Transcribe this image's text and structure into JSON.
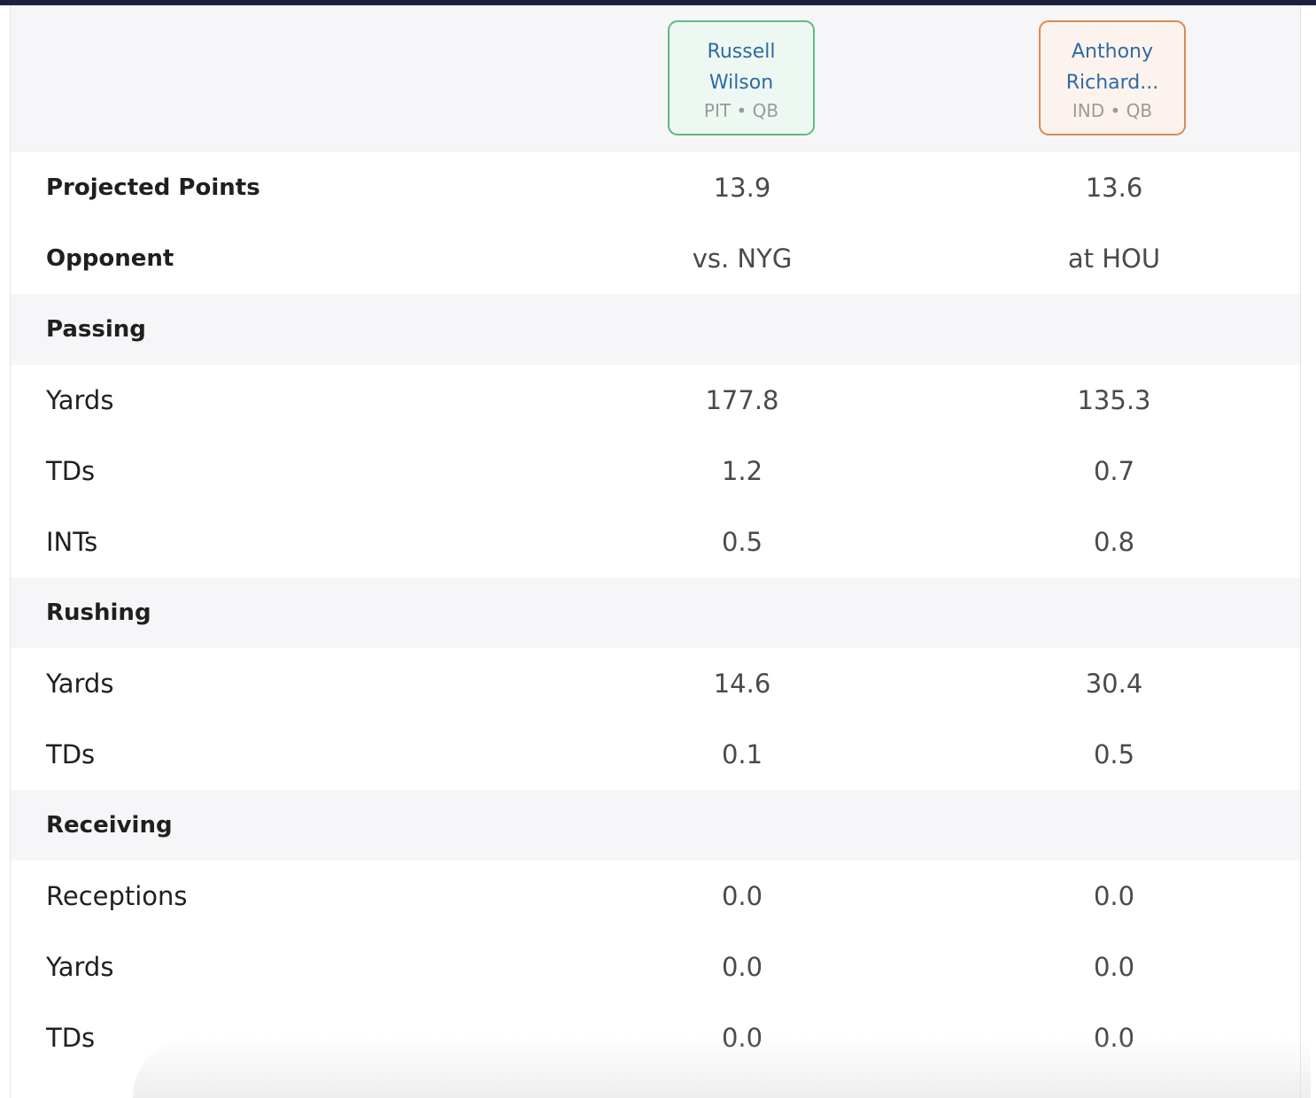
{
  "players": [
    {
      "name": "Russell\nWilson",
      "line1": "Russell",
      "line2": "Wilson",
      "meta": "PIT • QB",
      "accent": "#5cbc7e"
    },
    {
      "name": "Anthony\nRichard...",
      "line1": "Anthony",
      "line2": "Richard...",
      "meta": "IND • QB",
      "accent": "#d98b53"
    }
  ],
  "rows": [
    {
      "label": "Projected Points",
      "type": "bold",
      "values": [
        "13.9",
        "13.6"
      ]
    },
    {
      "label": "Opponent",
      "type": "bold",
      "values": [
        "vs. NYG",
        "at HOU"
      ]
    },
    {
      "label": "Passing",
      "type": "section",
      "values": [
        "",
        ""
      ]
    },
    {
      "label": "Yards",
      "type": "stat",
      "values": [
        "177.8",
        "135.3"
      ]
    },
    {
      "label": "TDs",
      "type": "stat",
      "values": [
        "1.2",
        "0.7"
      ]
    },
    {
      "label": "INTs",
      "type": "stat",
      "values": [
        "0.5",
        "0.8"
      ]
    },
    {
      "label": "Rushing",
      "type": "section",
      "values": [
        "",
        ""
      ]
    },
    {
      "label": "Yards",
      "type": "stat",
      "values": [
        "14.6",
        "30.4"
      ]
    },
    {
      "label": "TDs",
      "type": "stat",
      "values": [
        "0.1",
        "0.5"
      ]
    },
    {
      "label": "Receiving",
      "type": "section",
      "values": [
        "",
        ""
      ]
    },
    {
      "label": "Receptions",
      "type": "stat",
      "values": [
        "0.0",
        "0.0"
      ]
    },
    {
      "label": "Yards",
      "type": "stat",
      "values": [
        "0.0",
        "0.0"
      ]
    },
    {
      "label": "TDs",
      "type": "stat",
      "values": [
        "0.0",
        "0.0"
      ]
    }
  ]
}
